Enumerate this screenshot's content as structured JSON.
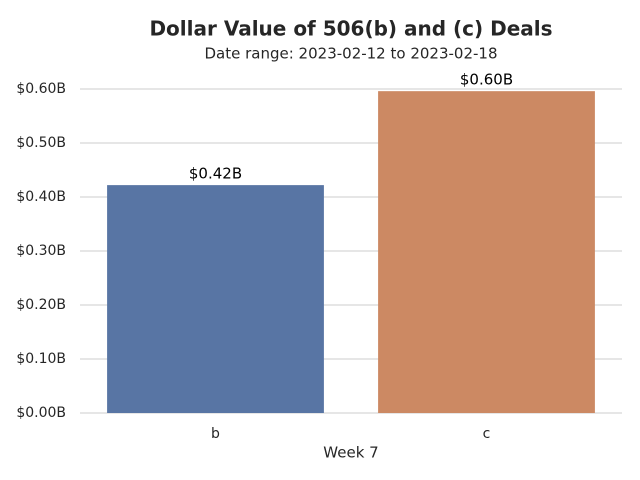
{
  "chart_data": {
    "type": "bar",
    "title": "Dollar Value of 506(b) and (c) Deals",
    "subtitle": "Date range: 2023-02-12 to 2023-02-18",
    "x_label": "Week 7",
    "categories": [
      "b",
      "c"
    ],
    "series": [
      {
        "name": "b",
        "color": "#5875a4",
        "values": [
          0.422,
          null
        ]
      },
      {
        "name": "c",
        "color": "#cc8963",
        "values": [
          null,
          0.596
        ]
      }
    ],
    "value_labels": [
      "$0.42B",
      "$0.60B"
    ],
    "ylim": [
      0,
      0.6
    ],
    "yticks": [
      {
        "value": 0,
        "label": "$0.00B"
      },
      {
        "value": 0.1,
        "label": "$0.10B"
      },
      {
        "value": 0.2,
        "label": "$0.20B"
      },
      {
        "value": 0.3,
        "label": "$0.30B"
      },
      {
        "value": 0.4,
        "label": "$0.40B"
      },
      {
        "value": 0.5,
        "label": "$0.50B"
      },
      {
        "value": 0.6,
        "label": "$0.60B"
      }
    ],
    "grid": true
  }
}
